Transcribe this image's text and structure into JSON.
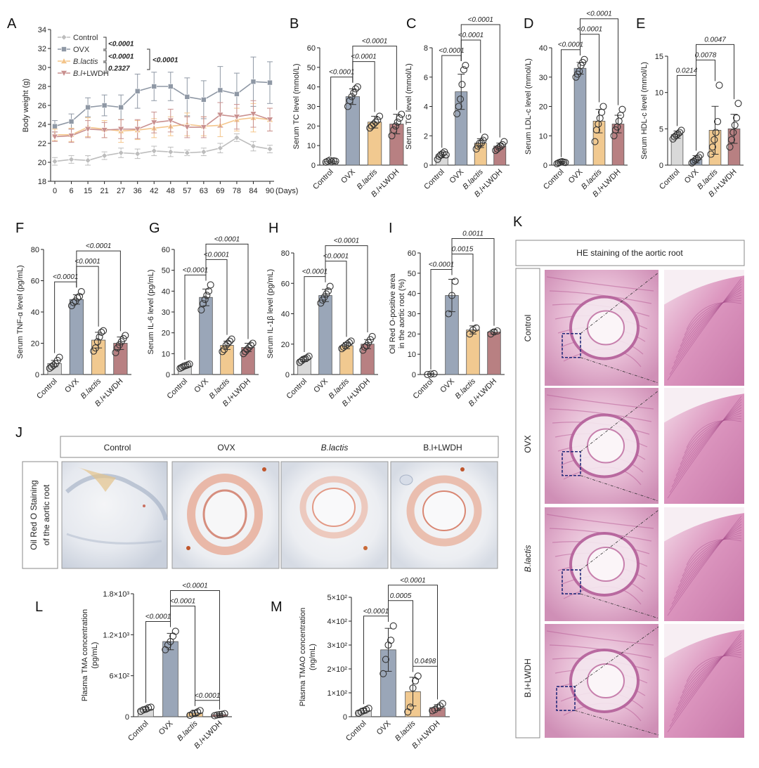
{
  "colors": {
    "control_fill": "#d9d9d9",
    "ovx_fill": "#9aa6b8",
    "blactis_fill": "#f1c990",
    "bl_lwdh_fill": "#b88082",
    "control_line": "#bdbdbd",
    "ovx_line": "#8f98a5",
    "blactis_line": "#f4c58a",
    "bl_lwdh_line": "#c9908f",
    "highlight_p": "#b01818"
  },
  "groups": [
    "Control",
    "OVX",
    "B.lactis",
    "B.l+LWDH"
  ],
  "chart_data": [
    {
      "panel": "A",
      "type": "line",
      "ylabel": "Body weight (g)",
      "xlabel": "(Days)",
      "x": [
        0,
        6,
        15,
        21,
        27,
        36,
        42,
        48,
        57,
        63,
        69,
        78,
        84,
        90
      ],
      "ylim": [
        18,
        34
      ],
      "yticks": [
        18,
        20,
        22,
        24,
        26,
        28,
        30,
        32,
        34
      ],
      "series": [
        {
          "name": "Control",
          "values": [
            20.1,
            20.3,
            20.2,
            20.7,
            21.0,
            20.9,
            21.2,
            21.1,
            21.0,
            21.1,
            21.5,
            22.6,
            21.7,
            21.4
          ],
          "err": [
            0.4,
            0.4,
            0.5,
            0.4,
            0.5,
            0.5,
            0.5,
            0.5,
            0.3,
            0.4,
            0.5,
            0.4,
            0.5,
            0.4
          ]
        },
        {
          "name": "OVX",
          "values": [
            23.8,
            24.3,
            25.8,
            26.0,
            25.8,
            27.5,
            28.0,
            28.0,
            26.9,
            26.6,
            27.6,
            27.2,
            28.5,
            28.4
          ],
          "err": [
            0.6,
            0.8,
            1.0,
            1.1,
            1.3,
            1.8,
            1.5,
            1.5,
            2.0,
            2.0,
            2.5,
            2.2,
            2.6,
            2.2
          ]
        },
        {
          "name": "B.lactis",
          "values": [
            22.9,
            22.9,
            23.7,
            23.5,
            23.3,
            23.4,
            23.6,
            23.8,
            24.0,
            23.8,
            23.9,
            24.5,
            24.7,
            24.5
          ],
          "err": [
            0.6,
            0.7,
            1.0,
            0.9,
            1.2,
            1.0,
            1.0,
            1.0,
            1.2,
            1.0,
            1.2,
            1.2,
            1.5,
            1.2
          ]
        },
        {
          "name": "B.l+LWDH",
          "values": [
            22.7,
            22.8,
            23.5,
            23.4,
            23.5,
            23.5,
            24.2,
            24.4,
            23.7,
            23.7,
            25.0,
            24.8,
            25.1,
            24.5
          ],
          "err": [
            0.5,
            0.7,
            0.9,
            0.8,
            1.0,
            1.0,
            1.1,
            1.2,
            1.1,
            1.1,
            1.3,
            1.3,
            1.4,
            1.2
          ]
        }
      ],
      "stats": [
        "<0.0001",
        "<0.0001",
        "0.2327",
        "<0.0001"
      ]
    },
    {
      "panel": "B",
      "type": "bar",
      "ylabel": "Serum TC level (mmol/L)",
      "ylim": [
        0,
        60
      ],
      "yticks": [
        0,
        10,
        20,
        30,
        40,
        50,
        60
      ],
      "values": [
        2,
        35,
        22,
        21
      ],
      "points": [
        [
          1.5,
          2.0,
          2.5,
          1.8,
          2.2,
          2.0
        ],
        [
          30,
          33,
          35,
          37,
          39,
          40
        ],
        [
          19,
          20,
          21,
          22,
          23,
          25
        ],
        [
          15,
          18,
          20,
          22,
          24,
          26
        ]
      ],
      "err": [
        0.5,
        4,
        3,
        5
      ],
      "comparisons": [
        {
          "a": 0,
          "b": 1,
          "p": "<0.0001"
        },
        {
          "a": 1,
          "b": 2,
          "p": "<0.0001"
        },
        {
          "a": 1,
          "b": 3,
          "p": "<0.0001"
        }
      ]
    },
    {
      "panel": "C",
      "type": "bar",
      "ylabel": "Serum TG level (mmol/L)",
      "ylim": [
        0,
        8
      ],
      "yticks": [
        0,
        2,
        4,
        6,
        8
      ],
      "values": [
        0.7,
        5.0,
        1.5,
        1.3
      ],
      "points": [
        [
          0.4,
          0.6,
          0.7,
          0.8,
          0.9,
          0.7
        ],
        [
          3.5,
          4.0,
          4.5,
          5.5,
          6.5,
          6.8
        ],
        [
          1.1,
          1.3,
          1.5,
          1.5,
          1.7,
          1.9
        ],
        [
          1.0,
          1.1,
          1.2,
          1.3,
          1.4,
          1.6
        ]
      ],
      "err": [
        0.2,
        1.2,
        0.3,
        0.2
      ],
      "comparisons": [
        {
          "a": 0,
          "b": 1,
          "p": "<0.0001"
        },
        {
          "a": 1,
          "b": 2,
          "p": "<0.0001"
        },
        {
          "a": 1,
          "b": 3,
          "p": "<0.0001"
        }
      ]
    },
    {
      "panel": "D",
      "type": "bar",
      "ylabel": "Serum LDL-c level (mmol/L)",
      "ylim": [
        0,
        40
      ],
      "yticks": [
        0,
        10,
        20,
        30,
        40
      ],
      "values": [
        1,
        33,
        15,
        14
      ],
      "points": [
        [
          0.5,
          0.8,
          1.0,
          1.2,
          1.0,
          0.9
        ],
        [
          30,
          31,
          32,
          34,
          35,
          36
        ],
        [
          8,
          12,
          14,
          16,
          18,
          20
        ],
        [
          10,
          12,
          13,
          15,
          17,
          19
        ]
      ],
      "err": [
        0.3,
        2,
        4,
        3
      ],
      "comparisons": [
        {
          "a": 0,
          "b": 1,
          "p": "<0.0001"
        },
        {
          "a": 1,
          "b": 2,
          "p": "<0.0001"
        },
        {
          "a": 1,
          "b": 3,
          "p": "<0.0001"
        }
      ]
    },
    {
      "panel": "E",
      "type": "bar",
      "ylabel": "Serum HDL-c level (mmol/L)",
      "ylim": [
        0,
        15
      ],
      "yticks": [
        0,
        5,
        10,
        15
      ],
      "values": [
        4.2,
        0.8,
        4.8,
        5.0
      ],
      "points": [
        [
          3.6,
          3.9,
          4.1,
          4.3,
          4.5,
          4.8
        ],
        [
          0.3,
          0.5,
          0.7,
          0.9,
          1.1,
          1.4
        ],
        [
          1.5,
          2.5,
          3.5,
          4.5,
          6,
          11
        ],
        [
          2.5,
          3.5,
          4.5,
          5.5,
          6.5,
          8.5
        ]
      ],
      "err": [
        0.5,
        0.5,
        3.3,
        2
      ],
      "comparisons": [
        {
          "a": 0,
          "b": 1,
          "p": "0.0214"
        },
        {
          "a": 1,
          "b": 2,
          "p": "0.0078"
        },
        {
          "a": 1,
          "b": 3,
          "p": "0.0047"
        }
      ]
    },
    {
      "panel": "F",
      "type": "bar",
      "ylabel": "Serum TNF-α level (pg/mL)",
      "ylim": [
        0,
        80
      ],
      "yticks": [
        0,
        20,
        40,
        60,
        80
      ],
      "values": [
        7,
        48,
        22,
        20
      ],
      "points": [
        [
          4,
          5,
          6,
          7,
          9,
          11
        ],
        [
          44,
          46,
          47,
          49,
          50,
          53
        ],
        [
          15,
          17,
          21,
          24,
          27,
          28
        ],
        [
          14,
          17,
          19,
          21,
          23,
          25
        ]
      ],
      "err": [
        2,
        3,
        5,
        4
      ],
      "comparisons": [
        {
          "a": 0,
          "b": 1,
          "p": "<0.0001"
        },
        {
          "a": 1,
          "b": 2,
          "p": "<0.0001"
        },
        {
          "a": 1,
          "b": 3,
          "p": "<0.0001"
        }
      ]
    },
    {
      "panel": "G",
      "type": "bar",
      "ylabel": "Serum IL-6 level (pg/mL)",
      "ylim": [
        0,
        60
      ],
      "yticks": [
        0,
        10,
        20,
        30,
        40,
        50,
        60
      ],
      "values": [
        4,
        37,
        14,
        13
      ],
      "points": [
        [
          3,
          3.5,
          4,
          4.3,
          4.6,
          5
        ],
        [
          31,
          34,
          36,
          38,
          40,
          43
        ],
        [
          11,
          12,
          14,
          15,
          16,
          17
        ],
        [
          10,
          11,
          12,
          13,
          14,
          15
        ]
      ],
      "err": [
        0.8,
        4,
        2,
        2
      ],
      "comparisons": [
        {
          "a": 0,
          "b": 1,
          "p": "<0.0001"
        },
        {
          "a": 1,
          "b": 2,
          "p": "<0.0001"
        },
        {
          "a": 1,
          "b": 3,
          "p": "<0.0001"
        }
      ]
    },
    {
      "panel": "H",
      "type": "bar",
      "ylabel": "Serum IL-1β level (pg/mL)",
      "ylim": [
        0,
        80
      ],
      "yticks": [
        0,
        20,
        40,
        60,
        80
      ],
      "values": [
        10,
        52,
        19,
        20
      ],
      "points": [
        [
          8,
          9,
          10,
          10.5,
          11,
          12
        ],
        [
          47,
          49,
          51,
          53,
          55,
          58
        ],
        [
          17,
          18,
          19,
          20,
          21,
          22
        ],
        [
          16,
          18,
          19,
          21,
          23,
          25
        ]
      ],
      "err": [
        1.5,
        4,
        2,
        3
      ],
      "comparisons": [
        {
          "a": 0,
          "b": 1,
          "p": "<0.0001"
        },
        {
          "a": 1,
          "b": 2,
          "p": "<0.0001"
        },
        {
          "a": 1,
          "b": 3,
          "p": "<0.0001"
        }
      ]
    },
    {
      "panel": "I",
      "type": "bar",
      "ylabel": "Oil Red O-positive area in the aortic root (%)",
      "ylim": [
        0,
        60
      ],
      "yticks": [
        0,
        10,
        20,
        30,
        40,
        50,
        60
      ],
      "values": [
        0.2,
        39,
        22,
        21
      ],
      "points": [
        [
          0,
          0.2,
          0.4
        ],
        [
          30,
          39,
          46
        ],
        [
          20,
          22,
          23
        ],
        [
          20,
          21,
          21.5
        ]
      ],
      "err": [
        0.2,
        8,
        2,
        1
      ],
      "comparisons": [
        {
          "a": 0,
          "b": 1,
          "p": "<0.0001"
        },
        {
          "a": 1,
          "b": 2,
          "p": "0.0015"
        },
        {
          "a": 1,
          "b": 3,
          "p": "0.0011"
        }
      ]
    },
    {
      "panel": "L",
      "type": "bar",
      "ylabel": "Plasma TMA concentration (pg/mL)",
      "ylim": [
        0,
        1800
      ],
      "yticks": [
        0,
        600,
        1200,
        1800
      ],
      "ytick_labels": [
        "0",
        "6×10²",
        "1.2×10³",
        "1.8×10³"
      ],
      "values": [
        110,
        1100,
        55,
        30
      ],
      "points": [
        [
          80,
          100,
          110,
          130,
          140
        ],
        [
          980,
          1050,
          1100,
          1180,
          1250
        ],
        [
          20,
          40,
          50,
          70,
          90
        ],
        [
          15,
          25,
          30,
          35,
          45
        ]
      ],
      "err": [
        30,
        120,
        40,
        15
      ],
      "comparisons": [
        {
          "a": 0,
          "b": 1,
          "p": "<0.0001"
        },
        {
          "a": 1,
          "b": 2,
          "p": "<0.0001"
        },
        {
          "a": 1,
          "b": 3,
          "p": "<0.0001"
        },
        {
          "a": 2,
          "b": 3,
          "p": "<0.0001"
        }
      ]
    },
    {
      "panel": "M",
      "type": "bar",
      "ylabel": "Plasma TMAO concentration (ng/mL)",
      "ylim": [
        0,
        500
      ],
      "yticks": [
        0,
        100,
        200,
        300,
        400,
        500
      ],
      "ytick_labels": [
        "0",
        "1×10²",
        "2×10²",
        "3×10²",
        "4×10²",
        "5×10²"
      ],
      "values": [
        25,
        280,
        105,
        38
      ],
      "points": [
        [
          15,
          20,
          25,
          30,
          35
        ],
        [
          180,
          240,
          300,
          320,
          380
        ],
        [
          20,
          40,
          120,
          150,
          170
        ],
        [
          25,
          30,
          38,
          45,
          55
        ]
      ],
      "err": [
        10,
        90,
        60,
        12
      ],
      "comparisons": [
        {
          "a": 0,
          "b": 1,
          "p": "<0.0001"
        },
        {
          "a": 1,
          "b": 2,
          "p": "0.0005"
        },
        {
          "a": 1,
          "b": 3,
          "p": "<0.0001"
        },
        {
          "a": 2,
          "b": 3,
          "p": "0.0498",
          "highlight": true
        }
      ]
    }
  ],
  "panel_j": {
    "label": "J",
    "row_label": "Oil Red O Staining of the aortic root",
    "row_label_lines": [
      "Oil Red O Staining",
      "of the aortic root"
    ],
    "columns": [
      "Control",
      "OVX",
      "B.lactis",
      "B.l+LWDH"
    ]
  },
  "panel_k": {
    "label": "K",
    "title": "HE staining of the aortic root",
    "rows": [
      "Control",
      "OVX",
      "B.lactis",
      "B.l+LWDH"
    ]
  }
}
